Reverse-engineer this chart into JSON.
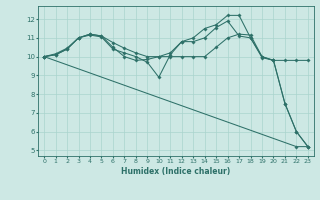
{
  "xlabel": "Humidex (Indice chaleur)",
  "xlim": [
    -0.5,
    23.5
  ],
  "ylim": [
    4.7,
    12.7
  ],
  "yticks": [
    5,
    6,
    7,
    8,
    9,
    10,
    11,
    12
  ],
  "xticks": [
    0,
    1,
    2,
    3,
    4,
    5,
    6,
    7,
    8,
    9,
    10,
    11,
    12,
    13,
    14,
    15,
    16,
    17,
    18,
    19,
    20,
    21,
    22,
    23
  ],
  "bg_color": "#cde8e4",
  "grid_color": "#aad4ce",
  "line_color": "#2d7068",
  "series": [
    {
      "x": [
        0,
        1,
        2,
        3,
        4,
        5,
        6,
        7,
        8,
        9,
        10,
        11,
        12,
        13,
        14,
        15,
        16,
        17,
        18,
        19,
        20,
        21,
        22,
        23
      ],
      "y": [
        10.0,
        10.1,
        10.4,
        11.0,
        11.2,
        11.1,
        10.5,
        10.0,
        9.8,
        9.85,
        10.0,
        10.2,
        10.8,
        11.0,
        11.5,
        11.7,
        12.2,
        12.2,
        11.0,
        10.0,
        9.8,
        7.5,
        6.0,
        5.2
      ]
    },
    {
      "x": [
        0,
        1,
        2,
        3,
        4,
        5,
        6,
        7,
        8,
        9,
        10,
        11,
        12,
        13,
        14,
        15,
        16,
        17,
        18,
        19,
        20,
        21,
        22,
        23
      ],
      "y": [
        10.0,
        10.1,
        10.4,
        11.0,
        11.15,
        11.05,
        10.4,
        10.2,
        10.0,
        9.7,
        8.9,
        10.1,
        10.8,
        10.8,
        11.0,
        11.55,
        11.9,
        11.1,
        11.0,
        9.95,
        9.8,
        7.5,
        6.0,
        5.2
      ]
    },
    {
      "x": [
        0,
        1,
        2,
        3,
        4,
        5,
        6,
        7,
        8,
        9,
        10,
        11,
        12,
        13,
        14,
        15,
        16,
        17,
        18,
        19,
        20,
        21,
        22,
        23
      ],
      "y": [
        10.0,
        10.15,
        10.45,
        11.0,
        11.2,
        11.1,
        10.75,
        10.45,
        10.2,
        10.0,
        10.0,
        10.0,
        10.0,
        10.0,
        10.0,
        10.5,
        11.0,
        11.2,
        11.15,
        10.0,
        9.8,
        9.8,
        9.8,
        9.8
      ]
    },
    {
      "x": [
        0,
        22,
        23
      ],
      "y": [
        10.0,
        5.2,
        5.2
      ]
    }
  ]
}
